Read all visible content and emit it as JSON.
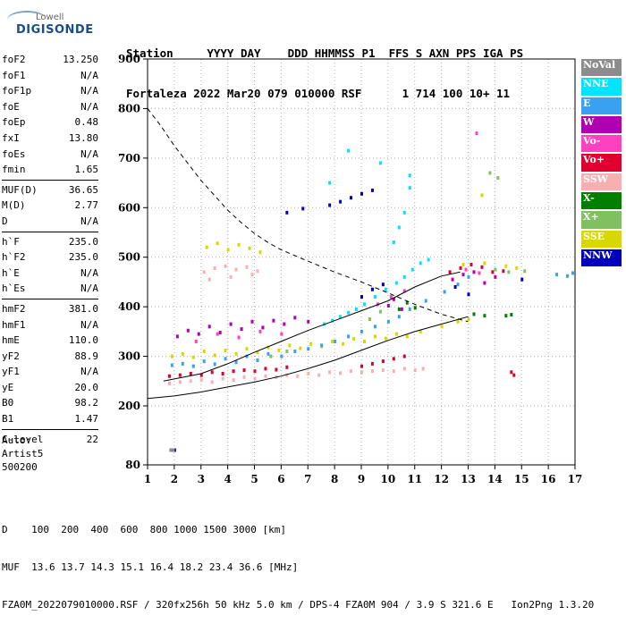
{
  "logo": {
    "line1": "Lowell",
    "line2": "DIGISONDE"
  },
  "header": {
    "labels": [
      "Station",
      "YYYY",
      "DAY",
      "DDD",
      "HHMMSS",
      "P1",
      "FFS",
      "S",
      "AXN",
      "PPS",
      "IGA",
      "PS"
    ],
    "values": [
      "Fortaleza",
      "2022",
      "Mar20",
      "079",
      "010000",
      "RSF",
      "1",
      "714",
      "100",
      "10+",
      "11"
    ]
  },
  "params": {
    "group1": [
      {
        "name": "foF2",
        "value": "13.250"
      },
      {
        "name": "foF1",
        "value": "N/A"
      },
      {
        "name": "foF1p",
        "value": "N/A"
      },
      {
        "name": "foE",
        "value": "N/A"
      },
      {
        "name": "foEp",
        "value": "0.48"
      },
      {
        "name": "fxI",
        "value": "13.80"
      },
      {
        "name": "foEs",
        "value": "N/A"
      },
      {
        "name": "fmin",
        "value": "1.65"
      }
    ],
    "group2": [
      {
        "name": "MUF(D)",
        "value": "36.65"
      },
      {
        "name": "M(D)",
        "value": "2.77"
      },
      {
        "name": "D",
        "value": "N/A"
      }
    ],
    "group3": [
      {
        "name": "h`F",
        "value": "235.0"
      },
      {
        "name": "h`F2",
        "value": "235.0"
      },
      {
        "name": "h`E",
        "value": "N/A"
      },
      {
        "name": "h`Es",
        "value": "N/A"
      }
    ],
    "group4": [
      {
        "name": "hmF2",
        "value": "381.0"
      },
      {
        "name": "hmF1",
        "value": "N/A"
      },
      {
        "name": "hmE",
        "value": "110.0"
      },
      {
        "name": "yF2",
        "value": "88.9"
      },
      {
        "name": "yF1",
        "value": "N/A"
      },
      {
        "name": "yE",
        "value": "20.0"
      },
      {
        "name": "B0",
        "value": "98.2"
      },
      {
        "name": "B1",
        "value": "1.47"
      }
    ],
    "group5": [
      {
        "name": "C-level",
        "value": "22"
      }
    ]
  },
  "auto": {
    "line1": "Auto:",
    "line2": "Artist5",
    "line3": "500200"
  },
  "legend": [
    {
      "label": "NoVal",
      "color": "#8c8c8c"
    },
    {
      "label": "NNE",
      "color": "#00e5ff"
    },
    {
      "label": "E",
      "color": "#3aa0f0"
    },
    {
      "label": "W",
      "color": "#b000b0"
    },
    {
      "label": "Vo-",
      "color": "#ff40c0"
    },
    {
      "label": "Vo+",
      "color": "#e00030"
    },
    {
      "label": "SSW",
      "color": "#f7b0b0"
    },
    {
      "label": "X-",
      "color": "#008000"
    },
    {
      "label": "X+",
      "color": "#80c060"
    },
    {
      "label": "SSE",
      "color": "#d8d800"
    },
    {
      "label": "NNW",
      "color": "#0000c0"
    }
  ],
  "footer": {
    "d_label": "D",
    "d_values": [
      "100",
      "200",
      "400",
      "600",
      "800",
      "1000",
      "1500",
      "3000",
      "[km]"
    ],
    "muf_label": "MUF",
    "muf_values": [
      "13.6",
      "13.7",
      "14.3",
      "15.1",
      "16.4",
      "18.2",
      "23.4",
      "36.6",
      "[MHz]"
    ],
    "file_line": "FZA0M_2022079010000.RSF / 320fx256h 50 kHz 5.0 km / DPS-4 FZA0M 904 / 3.9 S 321.6 E   Ion2Png 1.3.20"
  },
  "chart_data": {
    "type": "scatter",
    "xlim": [
      1,
      17
    ],
    "ylim": [
      80,
      900
    ],
    "x_ticks": [
      "1",
      "2",
      "3",
      "4",
      "5",
      "6",
      "7",
      "8",
      "9",
      "10",
      "11",
      "12",
      "13",
      "14",
      "15",
      "16",
      "17"
    ],
    "y_ticks": [
      "80",
      "200",
      "300",
      "400",
      "500",
      "600",
      "700",
      "800",
      "900"
    ],
    "y_tick_values": [
      80,
      200,
      300,
      400,
      500,
      600,
      700,
      800,
      900
    ],
    "grid": true,
    "legend_position": "right",
    "series": [
      {
        "name": "SSW",
        "points": [
          [
            1.8,
            245
          ],
          [
            2.2,
            248
          ],
          [
            2.6,
            250
          ],
          [
            3.0,
            252
          ],
          [
            3.4,
            248
          ],
          [
            3.8,
            255
          ],
          [
            4.2,
            252
          ],
          [
            4.6,
            258
          ],
          [
            5.0,
            255
          ],
          [
            5.4,
            260
          ],
          [
            5.8,
            258
          ],
          [
            6.2,
            262
          ],
          [
            6.6,
            260
          ],
          [
            7.0,
            265
          ],
          [
            7.4,
            262
          ],
          [
            7.8,
            268
          ],
          [
            8.2,
            266
          ],
          [
            8.6,
            270
          ],
          [
            9.0,
            268
          ],
          [
            9.4,
            270
          ],
          [
            9.8,
            272
          ],
          [
            10.2,
            270
          ],
          [
            10.6,
            275
          ],
          [
            11.0,
            272
          ],
          [
            11.3,
            275
          ],
          [
            3.1,
            470
          ],
          [
            3.5,
            478
          ],
          [
            3.9,
            482
          ],
          [
            4.3,
            475
          ],
          [
            4.7,
            480
          ],
          [
            5.1,
            472
          ],
          [
            3.3,
            455
          ],
          [
            4.1,
            460
          ],
          [
            4.9,
            465
          ]
        ]
      },
      {
        "name": "SSE",
        "points": [
          [
            1.9,
            300
          ],
          [
            2.3,
            305
          ],
          [
            2.7,
            298
          ],
          [
            3.1,
            310
          ],
          [
            3.5,
            302
          ],
          [
            3.9,
            312
          ],
          [
            4.3,
            305
          ],
          [
            4.7,
            315
          ],
          [
            5.1,
            308
          ],
          [
            5.5,
            318
          ],
          [
            5.9,
            312
          ],
          [
            6.3,
            322
          ],
          [
            6.7,
            316
          ],
          [
            7.1,
            325
          ],
          [
            7.5,
            320
          ],
          [
            7.9,
            330
          ],
          [
            8.3,
            325
          ],
          [
            8.7,
            335
          ],
          [
            9.1,
            330
          ],
          [
            9.5,
            340
          ],
          [
            9.9,
            336
          ],
          [
            10.3,
            345
          ],
          [
            10.7,
            340
          ],
          [
            11.2,
            350
          ],
          [
            12.0,
            360
          ],
          [
            12.6,
            370
          ],
          [
            13.0,
            375
          ],
          [
            3.2,
            520
          ],
          [
            3.6,
            528
          ],
          [
            4.0,
            515
          ],
          [
            4.4,
            525
          ],
          [
            4.8,
            518
          ],
          [
            5.2,
            510
          ],
          [
            12.8,
            485
          ],
          [
            13.6,
            488
          ],
          [
            14.4,
            482
          ],
          [
            14.8,
            478
          ],
          [
            13.5,
            625
          ]
        ]
      },
      {
        "name": "E",
        "points": [
          [
            1.9,
            282
          ],
          [
            2.3,
            285
          ],
          [
            2.7,
            280
          ],
          [
            3.1,
            290
          ],
          [
            3.5,
            284
          ],
          [
            3.9,
            295
          ],
          [
            4.3,
            288
          ],
          [
            4.7,
            300
          ],
          [
            5.1,
            292
          ],
          [
            5.5,
            305
          ],
          [
            6.0,
            300
          ],
          [
            6.5,
            310
          ],
          [
            7.0,
            315
          ],
          [
            7.5,
            322
          ],
          [
            8.0,
            330
          ],
          [
            8.5,
            340
          ],
          [
            9.0,
            350
          ],
          [
            9.5,
            360
          ],
          [
            10.0,
            370
          ],
          [
            10.4,
            380
          ],
          [
            10.8,
            395
          ],
          [
            11.4,
            412
          ],
          [
            12.1,
            430
          ],
          [
            12.6,
            445
          ],
          [
            13.0,
            460
          ],
          [
            16.3,
            465
          ],
          [
            16.7,
            462
          ],
          [
            16.9,
            468
          ]
        ]
      },
      {
        "name": "NNE",
        "points": [
          [
            7.6,
            365
          ],
          [
            7.9,
            372
          ],
          [
            8.2,
            380
          ],
          [
            8.5,
            388
          ],
          [
            8.8,
            395
          ],
          [
            9.1,
            405
          ],
          [
            9.5,
            420
          ],
          [
            9.9,
            435
          ],
          [
            10.3,
            448
          ],
          [
            10.6,
            460
          ],
          [
            10.9,
            475
          ],
          [
            11.2,
            488
          ],
          [
            11.5,
            495
          ],
          [
            10.2,
            530
          ],
          [
            10.4,
            560
          ],
          [
            10.6,
            590
          ],
          [
            10.8,
            640
          ],
          [
            8.5,
            715
          ],
          [
            7.8,
            650
          ],
          [
            9.7,
            690
          ],
          [
            10.8,
            665
          ]
        ]
      },
      {
        "name": "W",
        "points": [
          [
            2.1,
            340
          ],
          [
            2.5,
            352
          ],
          [
            2.9,
            345
          ],
          [
            3.3,
            360
          ],
          [
            3.7,
            348
          ],
          [
            4.1,
            365
          ],
          [
            4.5,
            355
          ],
          [
            4.9,
            370
          ],
          [
            5.3,
            358
          ],
          [
            5.7,
            372
          ],
          [
            6.1,
            365
          ],
          [
            6.5,
            378
          ],
          [
            7.0,
            370
          ],
          [
            10.0,
            402
          ],
          [
            10.2,
            415
          ],
          [
            10.5,
            395
          ],
          [
            12.4,
            455
          ],
          [
            12.8,
            465
          ],
          [
            13.2,
            470
          ],
          [
            13.6,
            448
          ],
          [
            14.0,
            460
          ]
        ]
      },
      {
        "name": "Vo-",
        "points": [
          [
            2.8,
            330
          ],
          [
            3.6,
            345
          ],
          [
            4.4,
            338
          ],
          [
            5.2,
            350
          ],
          [
            6.0,
            345
          ],
          [
            9.6,
            405
          ],
          [
            10.1,
            420
          ],
          [
            10.6,
            432
          ],
          [
            12.9,
            475
          ],
          [
            13.4,
            468
          ],
          [
            13.3,
            750
          ]
        ]
      },
      {
        "name": "Vo+",
        "points": [
          [
            1.8,
            260
          ],
          [
            2.2,
            262
          ],
          [
            2.6,
            265
          ],
          [
            3.0,
            262
          ],
          [
            3.4,
            268
          ],
          [
            3.8,
            265
          ],
          [
            4.2,
            270
          ],
          [
            4.6,
            272
          ],
          [
            5.0,
            270
          ],
          [
            5.4,
            275
          ],
          [
            5.8,
            273
          ],
          [
            6.2,
            278
          ],
          [
            9.0,
            280
          ],
          [
            9.4,
            285
          ],
          [
            9.8,
            290
          ],
          [
            10.2,
            295
          ],
          [
            10.6,
            300
          ],
          [
            12.3,
            470
          ],
          [
            12.7,
            478
          ],
          [
            13.1,
            485
          ],
          [
            13.5,
            480
          ],
          [
            13.9,
            470
          ],
          [
            14.3,
            472
          ],
          [
            14.6,
            268
          ],
          [
            14.7,
            262
          ]
        ]
      },
      {
        "name": "X-",
        "points": [
          [
            10.4,
            395
          ],
          [
            10.7,
            408
          ],
          [
            11.0,
            398
          ],
          [
            13.2,
            385
          ],
          [
            13.6,
            382
          ],
          [
            14.4,
            382
          ],
          [
            14.6,
            384
          ]
        ]
      },
      {
        "name": "X+",
        "points": [
          [
            5.6,
            300
          ],
          [
            6.2,
            310
          ],
          [
            9.3,
            375
          ],
          [
            9.7,
            390
          ],
          [
            14.0,
            475
          ],
          [
            14.5,
            470
          ],
          [
            15.1,
            472
          ],
          [
            13.8,
            670
          ],
          [
            14.1,
            660
          ]
        ]
      },
      {
        "name": "NNW",
        "points": [
          [
            9.0,
            420
          ],
          [
            9.4,
            435
          ],
          [
            9.8,
            445
          ],
          [
            7.8,
            605
          ],
          [
            8.2,
            612
          ],
          [
            8.6,
            620
          ],
          [
            9.0,
            628
          ],
          [
            9.4,
            635
          ],
          [
            6.2,
            590
          ],
          [
            6.8,
            598
          ],
          [
            12.5,
            440
          ],
          [
            13.0,
            425
          ],
          [
            15.0,
            455
          ],
          [
            1.9,
            110
          ],
          [
            2.0,
            110
          ]
        ]
      },
      {
        "name": "NoVal",
        "points": [
          [
            1.85,
            110
          ],
          [
            1.95,
            110
          ]
        ]
      }
    ],
    "lines": [
      {
        "name": "dashed",
        "style": "dashed",
        "points": [
          [
            1,
            800
          ],
          [
            1.5,
            765
          ],
          [
            2,
            725
          ],
          [
            2.5,
            690
          ],
          [
            3,
            655
          ],
          [
            3.5,
            625
          ],
          [
            4,
            595
          ],
          [
            4.5,
            570
          ],
          [
            5,
            548
          ],
          [
            5.5,
            530
          ],
          [
            6,
            515
          ],
          [
            7,
            492
          ],
          [
            8,
            470
          ],
          [
            9,
            450
          ],
          [
            10,
            428
          ],
          [
            11,
            405
          ],
          [
            12,
            385
          ],
          [
            13,
            370
          ]
        ]
      },
      {
        "name": "profile-upper",
        "style": "solid",
        "points": [
          [
            1.6,
            250
          ],
          [
            3,
            265
          ],
          [
            4,
            285
          ],
          [
            5,
            308
          ],
          [
            6,
            330
          ],
          [
            7,
            352
          ],
          [
            8,
            372
          ],
          [
            9,
            392
          ],
          [
            10,
            412
          ],
          [
            11,
            440
          ],
          [
            12,
            462
          ],
          [
            12.7,
            470
          ]
        ]
      },
      {
        "name": "profile-lower",
        "style": "solid",
        "points": [
          [
            1,
            215
          ],
          [
            2,
            220
          ],
          [
            3,
            228
          ],
          [
            4,
            238
          ],
          [
            5,
            248
          ],
          [
            6,
            260
          ],
          [
            7,
            275
          ],
          [
            8,
            292
          ],
          [
            9,
            312
          ],
          [
            10,
            332
          ],
          [
            11,
            350
          ],
          [
            12,
            365
          ],
          [
            13,
            380
          ]
        ]
      }
    ]
  }
}
